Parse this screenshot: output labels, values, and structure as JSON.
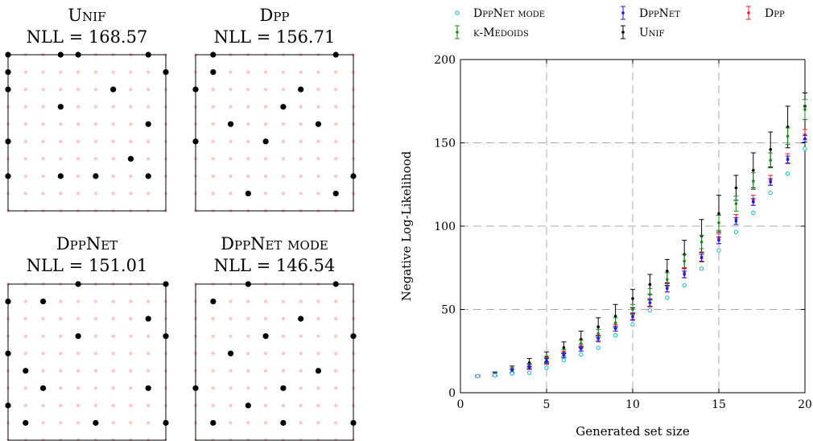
{
  "grid_panels": [
    {
      "name": "Unif",
      "nll_label": "NLL = 168.57",
      "selected": [
        [
          0,
          0
        ],
        [
          3,
          0
        ],
        [
          4,
          0
        ],
        [
          8,
          0
        ],
        [
          0,
          1
        ],
        [
          9,
          1
        ],
        [
          0,
          2
        ],
        [
          6,
          2
        ],
        [
          3,
          3
        ],
        [
          8,
          4
        ],
        [
          0,
          5
        ],
        [
          7,
          6
        ],
        [
          0,
          7
        ],
        [
          3,
          7
        ],
        [
          5,
          7
        ],
        [
          8,
          7
        ]
      ]
    },
    {
      "name": "Dpp",
      "nll_label": "NLL = 156.71",
      "selected": [
        [
          1,
          0
        ],
        [
          8,
          0
        ],
        [
          1,
          1
        ],
        [
          0,
          2
        ],
        [
          6,
          2
        ],
        [
          5,
          3
        ],
        [
          2,
          4
        ],
        [
          7,
          4
        ],
        [
          0,
          5
        ],
        [
          4,
          5
        ],
        [
          9,
          7
        ],
        [
          3,
          8
        ],
        [
          8,
          8
        ]
      ]
    },
    {
      "name": "DppNet",
      "nll_label": "NLL = 151.01",
      "selected": [
        [
          4,
          0
        ],
        [
          9,
          0
        ],
        [
          0,
          1
        ],
        [
          2,
          1
        ],
        [
          8,
          2
        ],
        [
          4,
          3
        ],
        [
          9,
          3
        ],
        [
          0,
          4
        ],
        [
          1,
          5
        ],
        [
          2,
          6
        ],
        [
          8,
          6
        ],
        [
          0,
          7
        ],
        [
          1,
          8
        ],
        [
          5,
          8
        ],
        [
          9,
          8
        ]
      ]
    },
    {
      "name": "DppNet mode",
      "nll_label": "NLL = 146.54",
      "selected": [
        [
          3,
          0
        ],
        [
          8,
          0
        ],
        [
          1,
          1
        ],
        [
          6,
          2
        ],
        [
          4,
          3
        ],
        [
          9,
          3
        ],
        [
          2,
          4
        ],
        [
          7,
          5
        ],
        [
          0,
          6
        ],
        [
          5,
          6
        ],
        [
          3,
          7
        ],
        [
          1,
          8
        ],
        [
          5,
          8
        ],
        [
          9,
          8
        ]
      ]
    }
  ],
  "chart_data": {
    "type": "scatter",
    "xlabel": "Generated set size",
    "ylabel": "Negative Log-Likelihood",
    "xlim": [
      0,
      20
    ],
    "ylim": [
      0,
      200
    ],
    "xticks": [
      0,
      5,
      10,
      15,
      20
    ],
    "yticks": [
      0,
      50,
      100,
      150,
      200
    ],
    "grid": "dashed",
    "legend_position": "top",
    "x": [
      1,
      2,
      3,
      4,
      5,
      6,
      7,
      8,
      9,
      10,
      11,
      12,
      13,
      14,
      15,
      16,
      17,
      18,
      19,
      20
    ],
    "series": [
      {
        "name": "DppNet mode",
        "color": "#17b6c4",
        "marker": "open-circle",
        "values": [
          10,
          10.5,
          11.5,
          12,
          15,
          19.5,
          23,
          27,
          34.5,
          41,
          49.5,
          57,
          64.5,
          74.5,
          85.5,
          96.5,
          108,
          120,
          131.5,
          146.5
        ],
        "err": [
          0,
          0,
          0,
          0,
          0,
          0,
          0,
          0,
          0,
          0,
          0,
          0,
          0,
          0,
          0,
          0,
          0,
          0,
          0,
          0
        ]
      },
      {
        "name": "DppNet",
        "color": "#1a1ae6",
        "marker": "errorbar",
        "values": [
          10,
          11,
          13,
          15.5,
          19,
          22.5,
          26.5,
          32.5,
          38.5,
          45.5,
          54,
          62.5,
          71,
          81,
          91.5,
          103,
          114.5,
          126.5,
          140,
          152.5
        ],
        "err": [
          0.5,
          1,
          1,
          1.5,
          1.5,
          1.5,
          1.5,
          1.5,
          1.5,
          2,
          2,
          2,
          2,
          2,
          2,
          2,
          2,
          2,
          2,
          2
        ]
      },
      {
        "name": "Dpp",
        "color": "#e8202a",
        "marker": "errorbar",
        "values": [
          10,
          11,
          13,
          15,
          19,
          23,
          27,
          32.5,
          39,
          46,
          54,
          63,
          72,
          81.5,
          92.5,
          104,
          115.5,
          127.5,
          140.5,
          155
        ],
        "err": [
          0.5,
          1,
          1,
          1,
          2,
          2,
          2,
          2,
          2,
          2,
          2.5,
          2.5,
          3,
          3,
          3,
          3,
          3,
          3,
          3,
          3
        ]
      },
      {
        "name": "k-Medoids",
        "color": "#1a8a1a",
        "marker": "errorbar",
        "values": [
          10,
          11.5,
          13.5,
          16,
          20,
          24,
          29.5,
          35.5,
          42,
          50,
          59,
          68,
          79,
          90.5,
          102,
          113.5,
          127,
          139.5,
          154,
          170
        ],
        "err": [
          0.5,
          1,
          1.5,
          1.5,
          2,
          2,
          2,
          2.5,
          3,
          3,
          3.5,
          4,
          4,
          4,
          4.5,
          4.5,
          5,
          4.5,
          5,
          6
        ]
      },
      {
        "name": "Unif",
        "color": "#000000",
        "marker": "errorbar",
        "values": [
          10,
          11.5,
          14,
          18,
          21.5,
          27,
          32,
          39.5,
          46,
          56.5,
          65,
          73,
          83,
          94,
          107.5,
          123,
          133.5,
          146,
          159.5,
          172
        ],
        "err": [
          0.5,
          1,
          2,
          2.5,
          3,
          3.5,
          5,
          5.5,
          7,
          5.5,
          6,
          7,
          8.5,
          10,
          11,
          7.5,
          10.5,
          10.5,
          12.5,
          8
        ]
      }
    ]
  }
}
